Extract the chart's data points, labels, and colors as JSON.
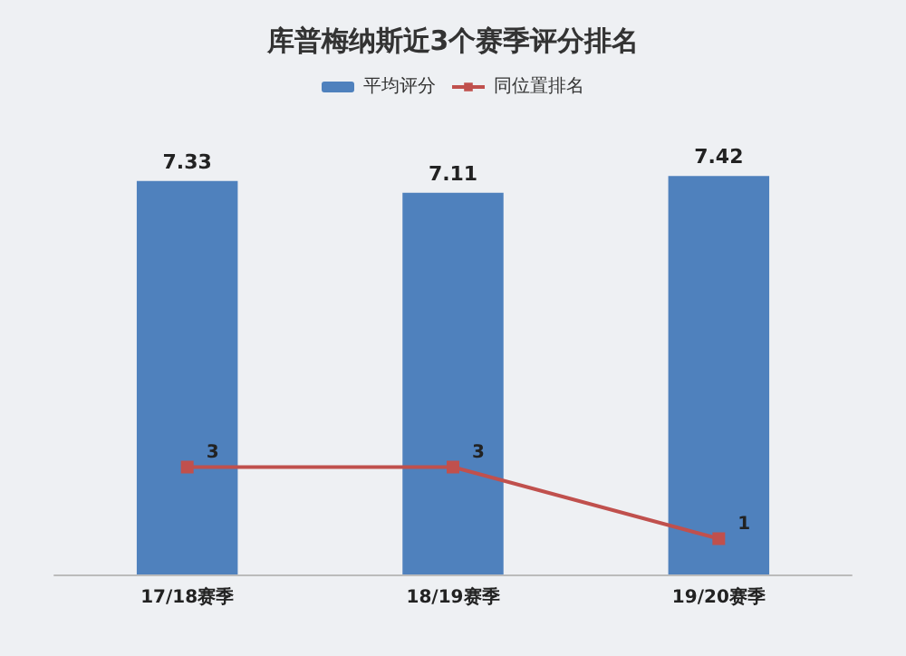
{
  "chart_data": {
    "type": "bar",
    "title": "库普梅纳斯近3个赛季评分排名",
    "categories": [
      "17/18赛季",
      "18/19赛季",
      "19/20赛季"
    ],
    "series": [
      {
        "name": "平均评分",
        "color": "#4f81bd",
        "values": [
          7.33,
          7.11,
          7.42
        ]
      },
      {
        "name": "同位置排名",
        "type": "line",
        "axis": "y2",
        "color": "#c0504d",
        "values": [
          3,
          3,
          1
        ]
      }
    ],
    "data_labels": true,
    "legend": "top",
    "marker": "square",
    "grid": false,
    "line_style": "solid"
  }
}
